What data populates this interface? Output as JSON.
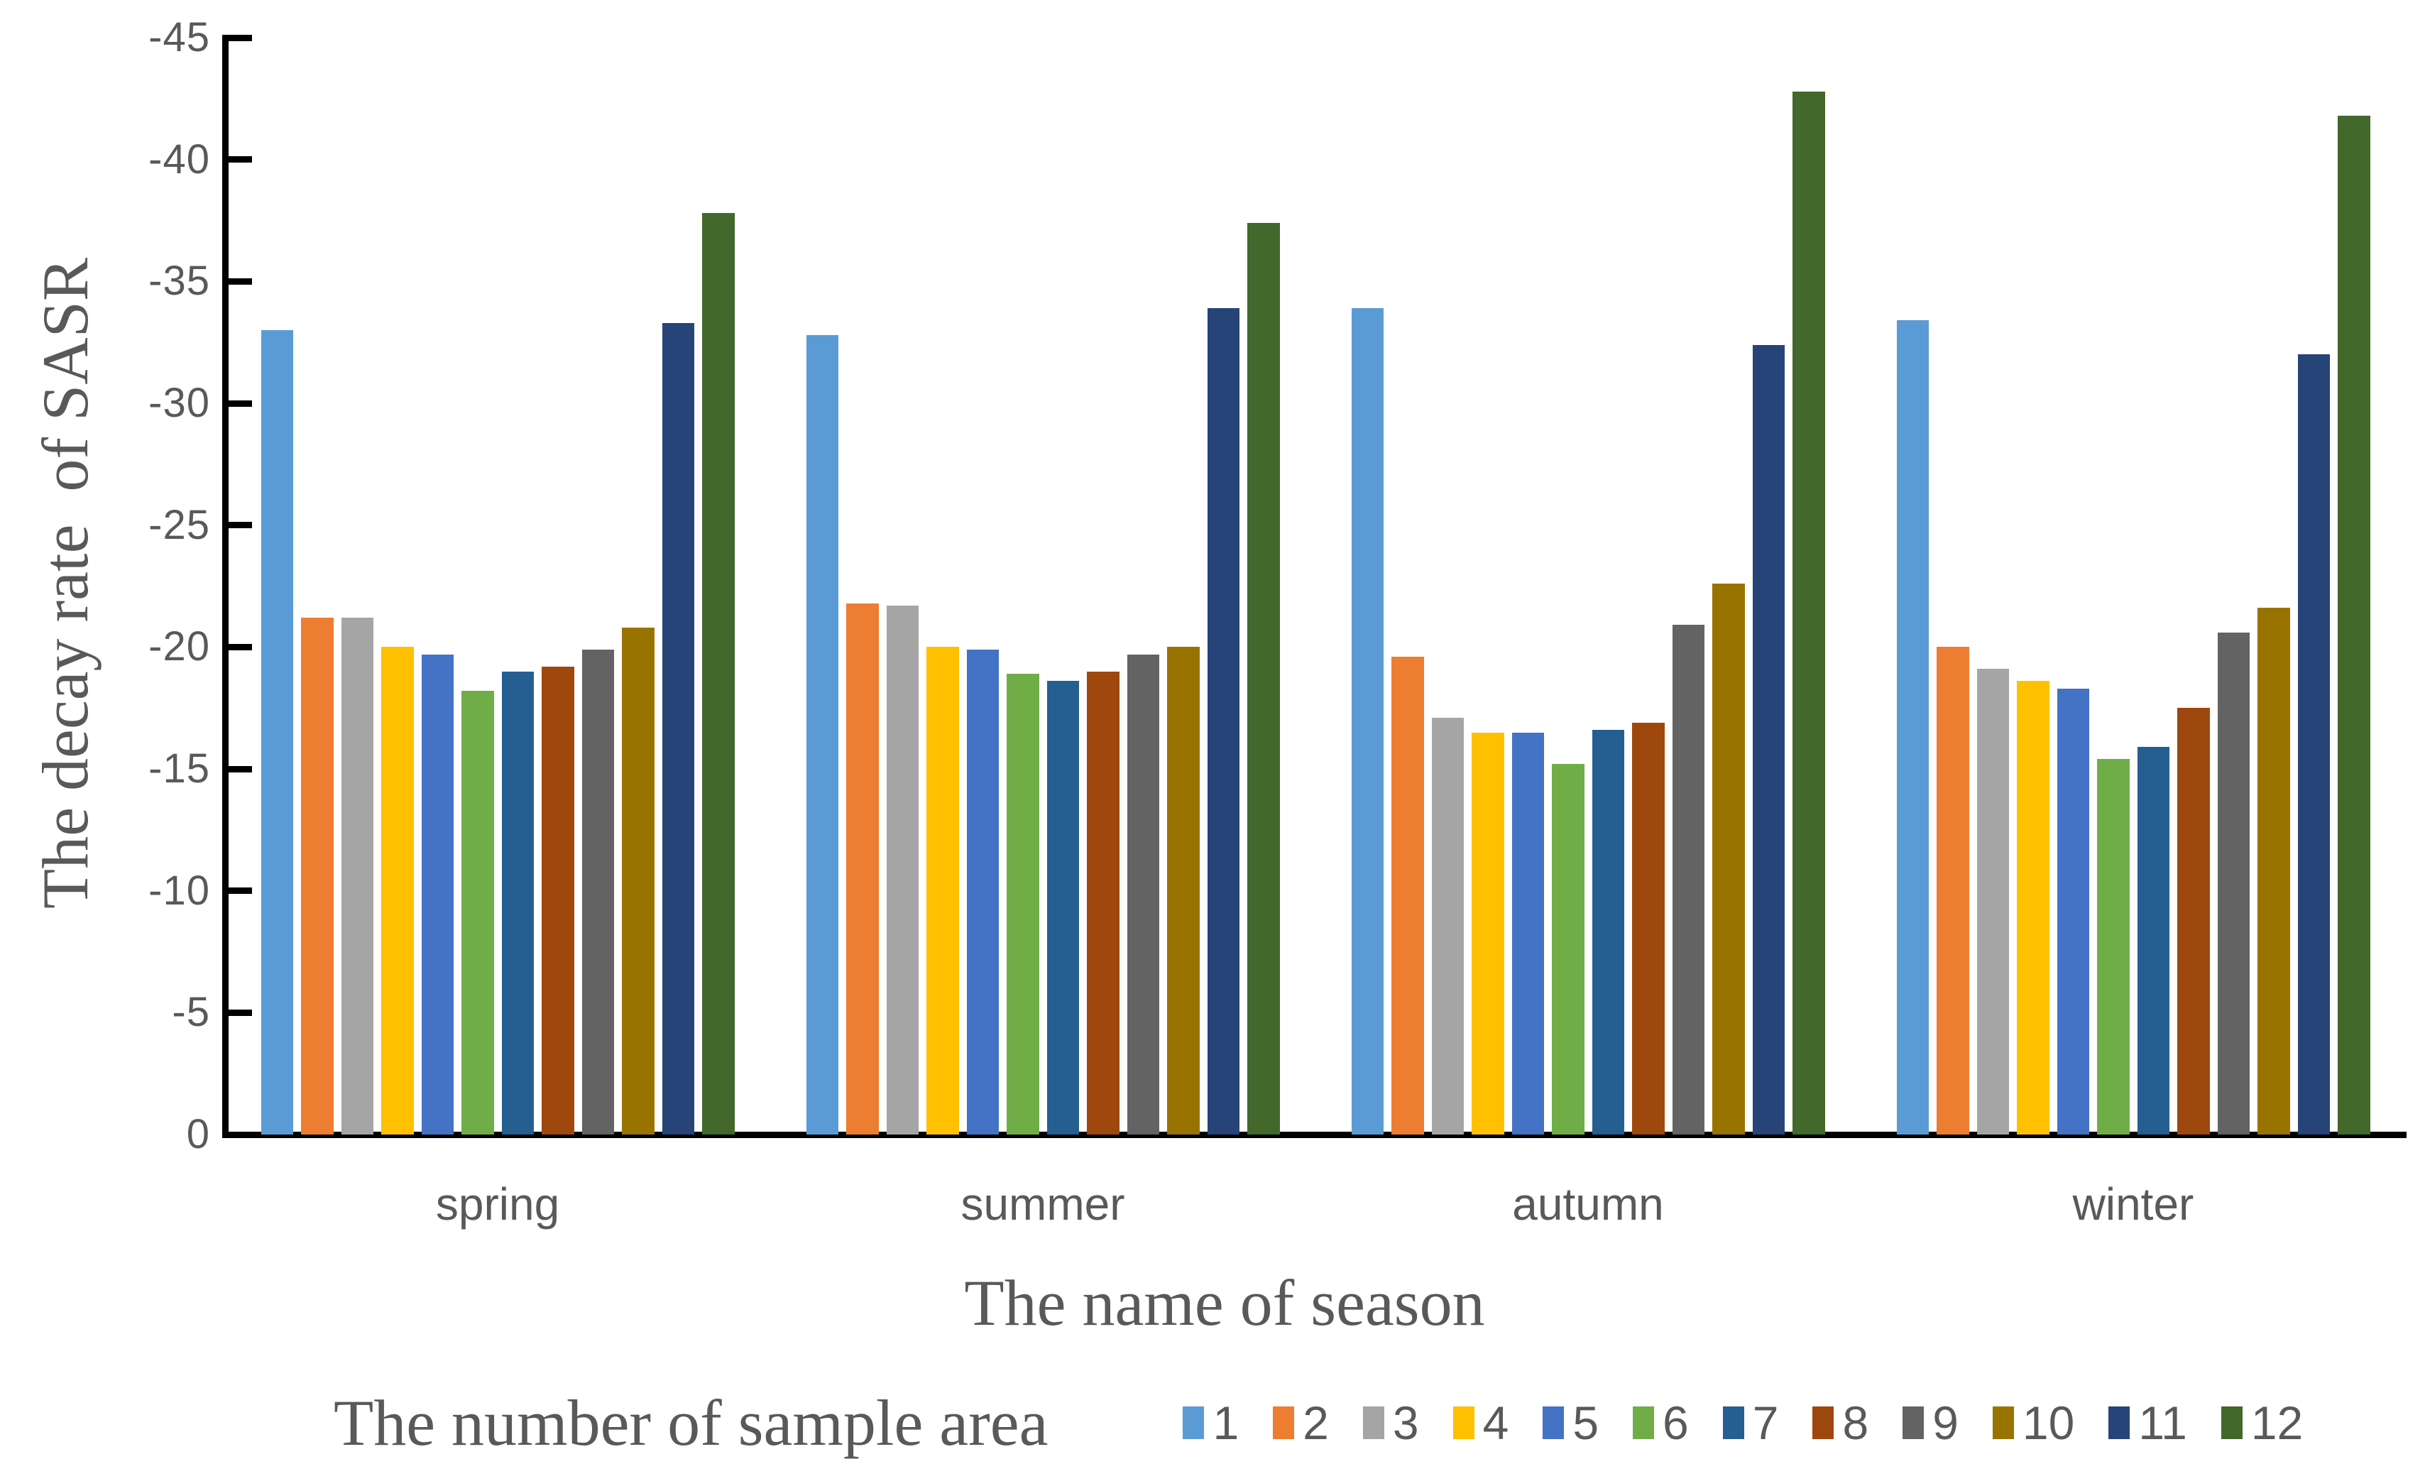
{
  "chart_data": {
    "type": "bar",
    "title": "",
    "xlabel": "The name of season",
    "ylabel": "The decay rate  of SASR",
    "legend_title": "The number of sample area",
    "legend_position": "bottom",
    "grid": false,
    "axis_inverted": true,
    "ylim": [
      0,
      -45
    ],
    "yticks": [
      0,
      -5,
      -10,
      -15,
      -20,
      -25,
      -30,
      -35,
      -40,
      -45
    ],
    "categories": [
      "spring",
      "summer",
      "autumn",
      "winter"
    ],
    "series": [
      {
        "name": "1",
        "color": "#5B9BD5",
        "values": [
          -33.0,
          -32.8,
          -33.9,
          -33.4
        ]
      },
      {
        "name": "2",
        "color": "#ED7D31",
        "values": [
          -21.2,
          -21.8,
          -19.6,
          -20.0
        ]
      },
      {
        "name": "3",
        "color": "#A5A5A5",
        "values": [
          -21.2,
          -21.7,
          -17.1,
          -19.1
        ]
      },
      {
        "name": "4",
        "color": "#FFC000",
        "values": [
          -20.0,
          -20.0,
          -16.5,
          -18.6
        ]
      },
      {
        "name": "5",
        "color": "#4472C4",
        "values": [
          -19.7,
          -19.9,
          -16.5,
          -18.3
        ]
      },
      {
        "name": "6",
        "color": "#70AD47",
        "values": [
          -18.2,
          -18.9,
          -15.2,
          -15.4
        ]
      },
      {
        "name": "7",
        "color": "#255E91",
        "values": [
          -19.0,
          -18.6,
          -16.6,
          -15.9
        ]
      },
      {
        "name": "8",
        "color": "#9E480E",
        "values": [
          -19.2,
          -19.0,
          -16.9,
          -17.5
        ]
      },
      {
        "name": "9",
        "color": "#636363",
        "values": [
          -19.9,
          -19.7,
          -20.9,
          -20.6
        ]
      },
      {
        "name": "10",
        "color": "#997300",
        "values": [
          -20.8,
          -20.0,
          -22.6,
          -21.6
        ]
      },
      {
        "name": "11",
        "color": "#264478",
        "values": [
          -33.3,
          -33.9,
          -32.4,
          -32.0
        ]
      },
      {
        "name": "12",
        "color": "#43682B",
        "values": [
          -37.8,
          -37.4,
          -42.8,
          -41.8
        ]
      }
    ]
  }
}
